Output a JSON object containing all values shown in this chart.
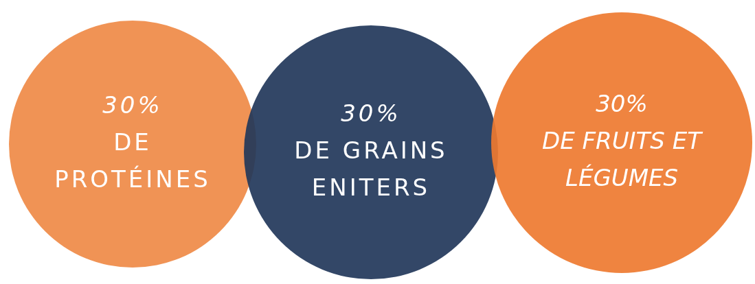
{
  "chart_data": {
    "type": "other",
    "categories": [
      "DE PROTÉINES",
      "DE GRAINS ENITERS",
      "DE FRUITS ET LÉGUMES"
    ],
    "values": [
      30,
      30,
      30
    ],
    "value_labels": [
      "30%",
      "30%",
      "30%"
    ],
    "colors": [
      "#ef8a47",
      "#22375a",
      "#ee7a30"
    ]
  }
}
